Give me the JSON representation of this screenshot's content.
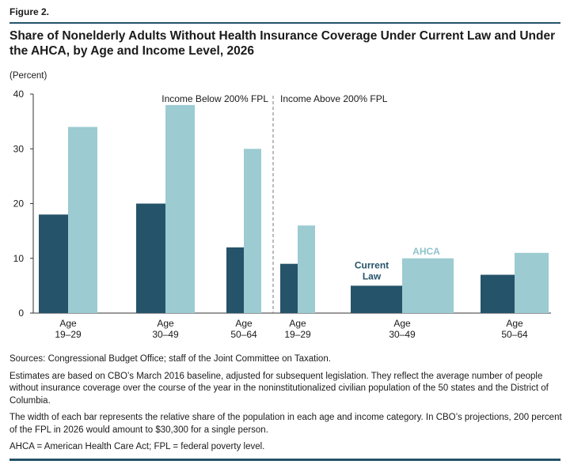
{
  "figure_label": "Figure 2.",
  "title": "Share of Nonelderly Adults Without Health Insurance Coverage Under Current Law and Under the AHCA, by Age and Income Level, 2026",
  "unit_label": "(Percent)",
  "colors": {
    "current": "#25536a",
    "ahca": "#9ccbd2",
    "rule": "#25536a",
    "ahca_label": "#8cc3cc"
  },
  "chart_data": {
    "type": "bar",
    "ylim": [
      0,
      40
    ],
    "yticks": [
      0,
      10,
      20,
      30,
      40
    ],
    "groups": [
      "Income Below 200% FPL",
      "Income Above 200% FPL"
    ],
    "categories": [
      {
        "group": "Income Below 200% FPL",
        "label_line1": "Age",
        "label_line2": "19–29",
        "current": 18,
        "ahca": 34,
        "width_share": 1.0
      },
      {
        "group": "Income Below 200% FPL",
        "label_line1": "Age",
        "label_line2": "30–49",
        "current": 20,
        "ahca": 38,
        "width_share": 1.0
      },
      {
        "group": "Income Below 200% FPL",
        "label_line1": "Age",
        "label_line2": "50–64",
        "current": 12,
        "ahca": 30,
        "width_share": 0.6
      },
      {
        "group": "Income Above 200% FPL",
        "label_line1": "Age",
        "label_line2": "19–29",
        "current": 9,
        "ahca": 16,
        "width_share": 0.6
      },
      {
        "group": "Income Above 200% FPL",
        "label_line1": "Age",
        "label_line2": "30–49",
        "current": 5,
        "ahca": 10,
        "width_share": 1.75
      },
      {
        "group": "Income Above 200% FPL",
        "label_line1": "Age",
        "label_line2": "50–64",
        "current": 7,
        "ahca": 11,
        "width_share": 1.15
      }
    ],
    "series_labels": {
      "current_line1": "Current",
      "current_line2": "Law",
      "ahca": "AHCA"
    }
  },
  "notes": [
    "Sources: Congressional Budget Office; staff of the Joint Committee on Taxation.",
    "Estimates are based on CBO’s March 2016 baseline, adjusted for subsequent legislation. They reflect the average number of people without insurance coverage over the course of the year in the noninstitutionalized civilian population of the 50 states and the District of Columbia.",
    "The width of each bar represents the relative share of the population in each age and income category. In CBO’s projections, 200 percent of the FPL in 2026 would amount to $30,300 for a single person.",
    "AHCA = American Health Care Act; FPL = federal poverty level."
  ]
}
